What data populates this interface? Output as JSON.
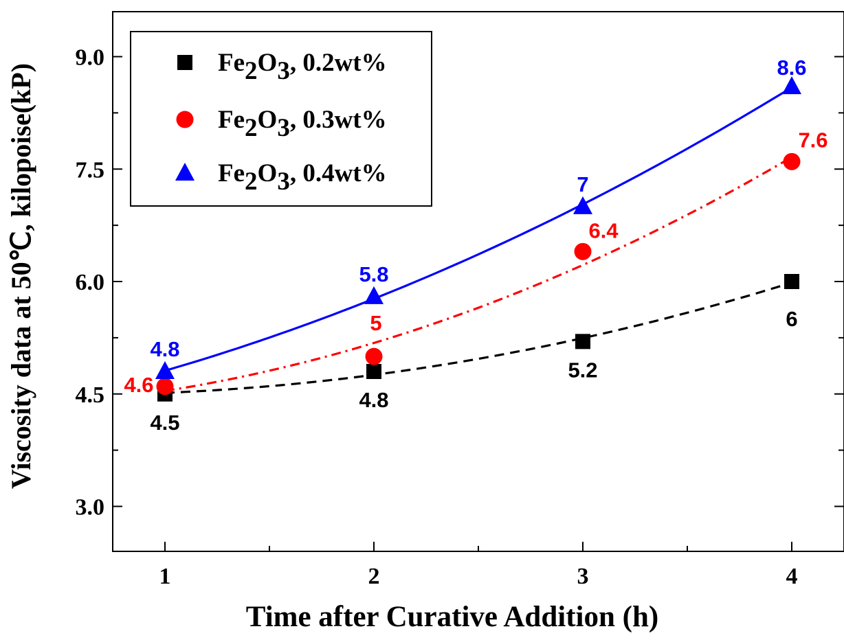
{
  "chart_data": {
    "type": "line",
    "xlabel": "Time after Curative Addition (h)",
    "ylabel": "Viscosity data at 50℃, kilopoise(kP)",
    "x": [
      1,
      2,
      3,
      4
    ],
    "x_ticks": [
      "1",
      "2",
      "3",
      "4"
    ],
    "xlim": [
      0.75,
      4.25
    ],
    "y_ticks": [
      "3.0",
      "4.5",
      "6.0",
      "7.5",
      "9.0"
    ],
    "ylim": [
      2.4,
      9.6
    ],
    "grid": false,
    "legend_position": "top-left",
    "series": [
      {
        "name": "Fe2O3, 0.2wt%",
        "legend": {
          "base1": "Fe",
          "sub1": "2",
          "base2": "O",
          "sub2": "3",
          "suffix": ", 0.2wt%"
        },
        "values": [
          4.5,
          4.8,
          5.2,
          6.0
        ],
        "labels": [
          "4.5",
          "4.8",
          "5.2",
          "6"
        ],
        "color": "#000000",
        "marker": "square",
        "line_style": "dashed"
      },
      {
        "name": "Fe2O3, 0.3wt%",
        "legend": {
          "base1": "Fe",
          "sub1": "2",
          "base2": "O",
          "sub2": "3",
          "suffix": ", 0.3wt%"
        },
        "values": [
          4.6,
          5.0,
          6.4,
          7.6
        ],
        "labels": [
          "4.6",
          "5",
          "6.4",
          "7.6"
        ],
        "color": "#ff0000",
        "marker": "circle",
        "line_style": "dash-dot"
      },
      {
        "name": "Fe2O3, 0.4wt%",
        "legend": {
          "base1": "Fe",
          "sub1": "2",
          "base2": "O",
          "sub2": "3",
          "suffix": ", 0.4wt%"
        },
        "values": [
          4.8,
          5.8,
          7.0,
          8.6
        ],
        "labels": [
          "4.8",
          "5.8",
          "7",
          "8.6"
        ],
        "color": "#0000ff",
        "marker": "triangle",
        "line_style": "solid"
      }
    ]
  }
}
